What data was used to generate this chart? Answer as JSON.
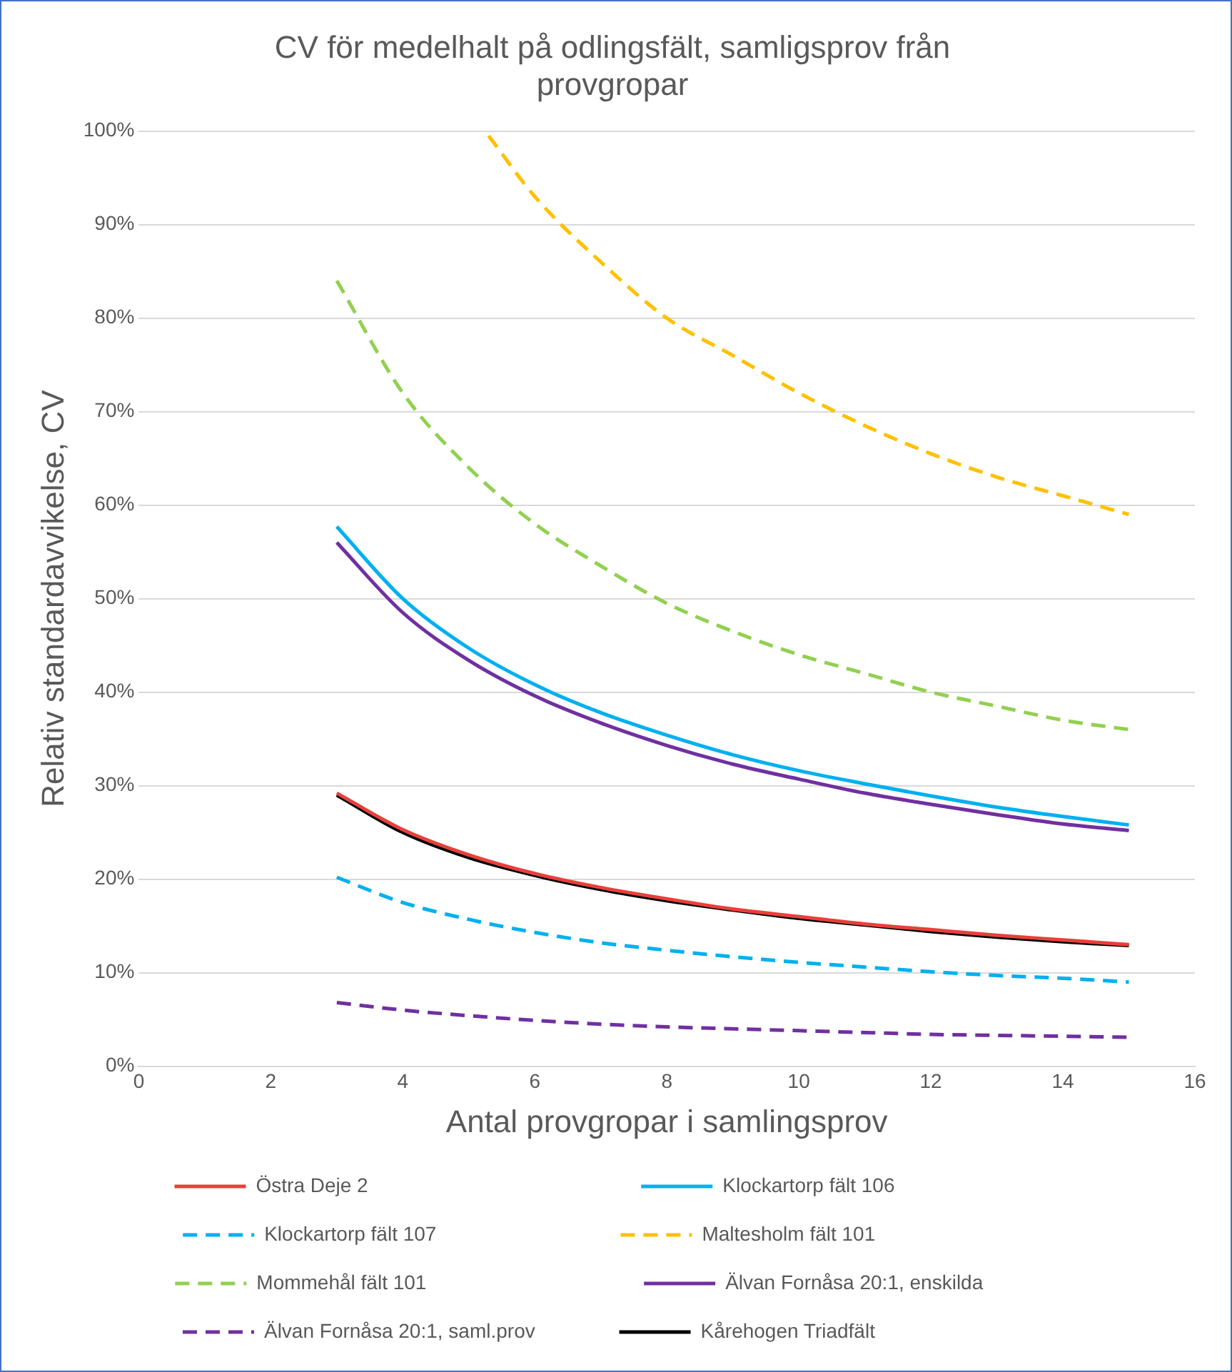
{
  "chart_data": {
    "type": "line",
    "title": "CV för medelhalt på odlingsfält, samligsprov från provgropar",
    "xlabel": "Antal provgropar i samlingsprov",
    "ylabel": "Relativ standardavvikelse, CV",
    "x": [
      3,
      4,
      5,
      6,
      7,
      8,
      9,
      10,
      11,
      12,
      13,
      14,
      15
    ],
    "xlim": [
      0,
      16
    ],
    "xticks": [
      0,
      2,
      4,
      6,
      8,
      10,
      12,
      14,
      16
    ],
    "ylim": [
      0,
      100
    ],
    "yticks": [
      {
        "value": 0,
        "label": "0%"
      },
      {
        "value": 10,
        "label": "10%"
      },
      {
        "value": 20,
        "label": "20%"
      },
      {
        "value": 30,
        "label": "30%"
      },
      {
        "value": 40,
        "label": "40%"
      },
      {
        "value": 50,
        "label": "50%"
      },
      {
        "value": 60,
        "label": "60%"
      },
      {
        "value": 70,
        "label": "70%"
      },
      {
        "value": 80,
        "label": "80%"
      },
      {
        "value": 90,
        "label": "90%"
      },
      {
        "value": 100,
        "label": "100%"
      }
    ],
    "grid": "y",
    "legend": "bottom",
    "marker": "none",
    "series": [
      {
        "name": "Östra Deje 2",
        "color": "#e8403a",
        "line_style": "solid",
        "values": [
          29.2,
          25.3,
          22.6,
          20.6,
          19.1,
          17.9,
          16.8,
          16.0,
          15.2,
          14.6,
          14.0,
          13.5,
          13.0
        ]
      },
      {
        "name": "Klockartorp fält 106",
        "color": "#00b0f0",
        "line_style": "solid",
        "values": [
          57.7,
          50.0,
          44.7,
          40.8,
          37.8,
          35.4,
          33.3,
          31.6,
          30.2,
          28.9,
          27.7,
          26.7,
          25.8
        ]
      },
      {
        "name": "Klockartorp fält 107",
        "color": "#00b0f0",
        "line_style": "dashed",
        "values": [
          20.2,
          17.5,
          15.7,
          14.3,
          13.2,
          12.4,
          11.7,
          11.1,
          10.6,
          10.1,
          9.7,
          9.4,
          9.0
        ]
      },
      {
        "name": "Maltesholm fält 101",
        "color": "#ffc000",
        "line_style": "dashed",
        "x": [
          5.3,
          6,
          7,
          8,
          9,
          10,
          11,
          12,
          13,
          14,
          15
        ],
        "values": [
          99.5,
          93,
          86,
          80,
          76,
          72,
          68.5,
          65.5,
          63,
          61,
          59
        ]
      },
      {
        "name": "Mommehål fält 101",
        "color": "#92d050",
        "line_style": "dashed",
        "values": [
          84,
          72,
          64,
          58,
          53.5,
          49.5,
          46.5,
          44,
          42,
          40,
          38.5,
          37,
          36
        ]
      },
      {
        "name": "Älvan Fornåsa 20:1, enskilda",
        "color": "#7030a0",
        "line_style": "solid",
        "values": [
          56.0,
          48.5,
          43.4,
          39.6,
          36.7,
          34.3,
          32.3,
          30.7,
          29.2,
          28.0,
          26.9,
          25.9,
          25.2
        ]
      },
      {
        "name": "Älvan Fornåsa 20:1, saml.prov",
        "color": "#7030a0",
        "line_style": "dashed",
        "values": [
          6.8,
          6.0,
          5.4,
          4.9,
          4.5,
          4.2,
          4.0,
          3.8,
          3.6,
          3.4,
          3.3,
          3.2,
          3.1
        ]
      },
      {
        "name": "Kårehogen Triadfält",
        "color": "#000000",
        "line_style": "solid",
        "values": [
          29.0,
          25.0,
          22.3,
          20.4,
          18.9,
          17.7,
          16.7,
          15.8,
          15.1,
          14.4,
          13.8,
          13.3,
          12.9
        ]
      }
    ]
  }
}
